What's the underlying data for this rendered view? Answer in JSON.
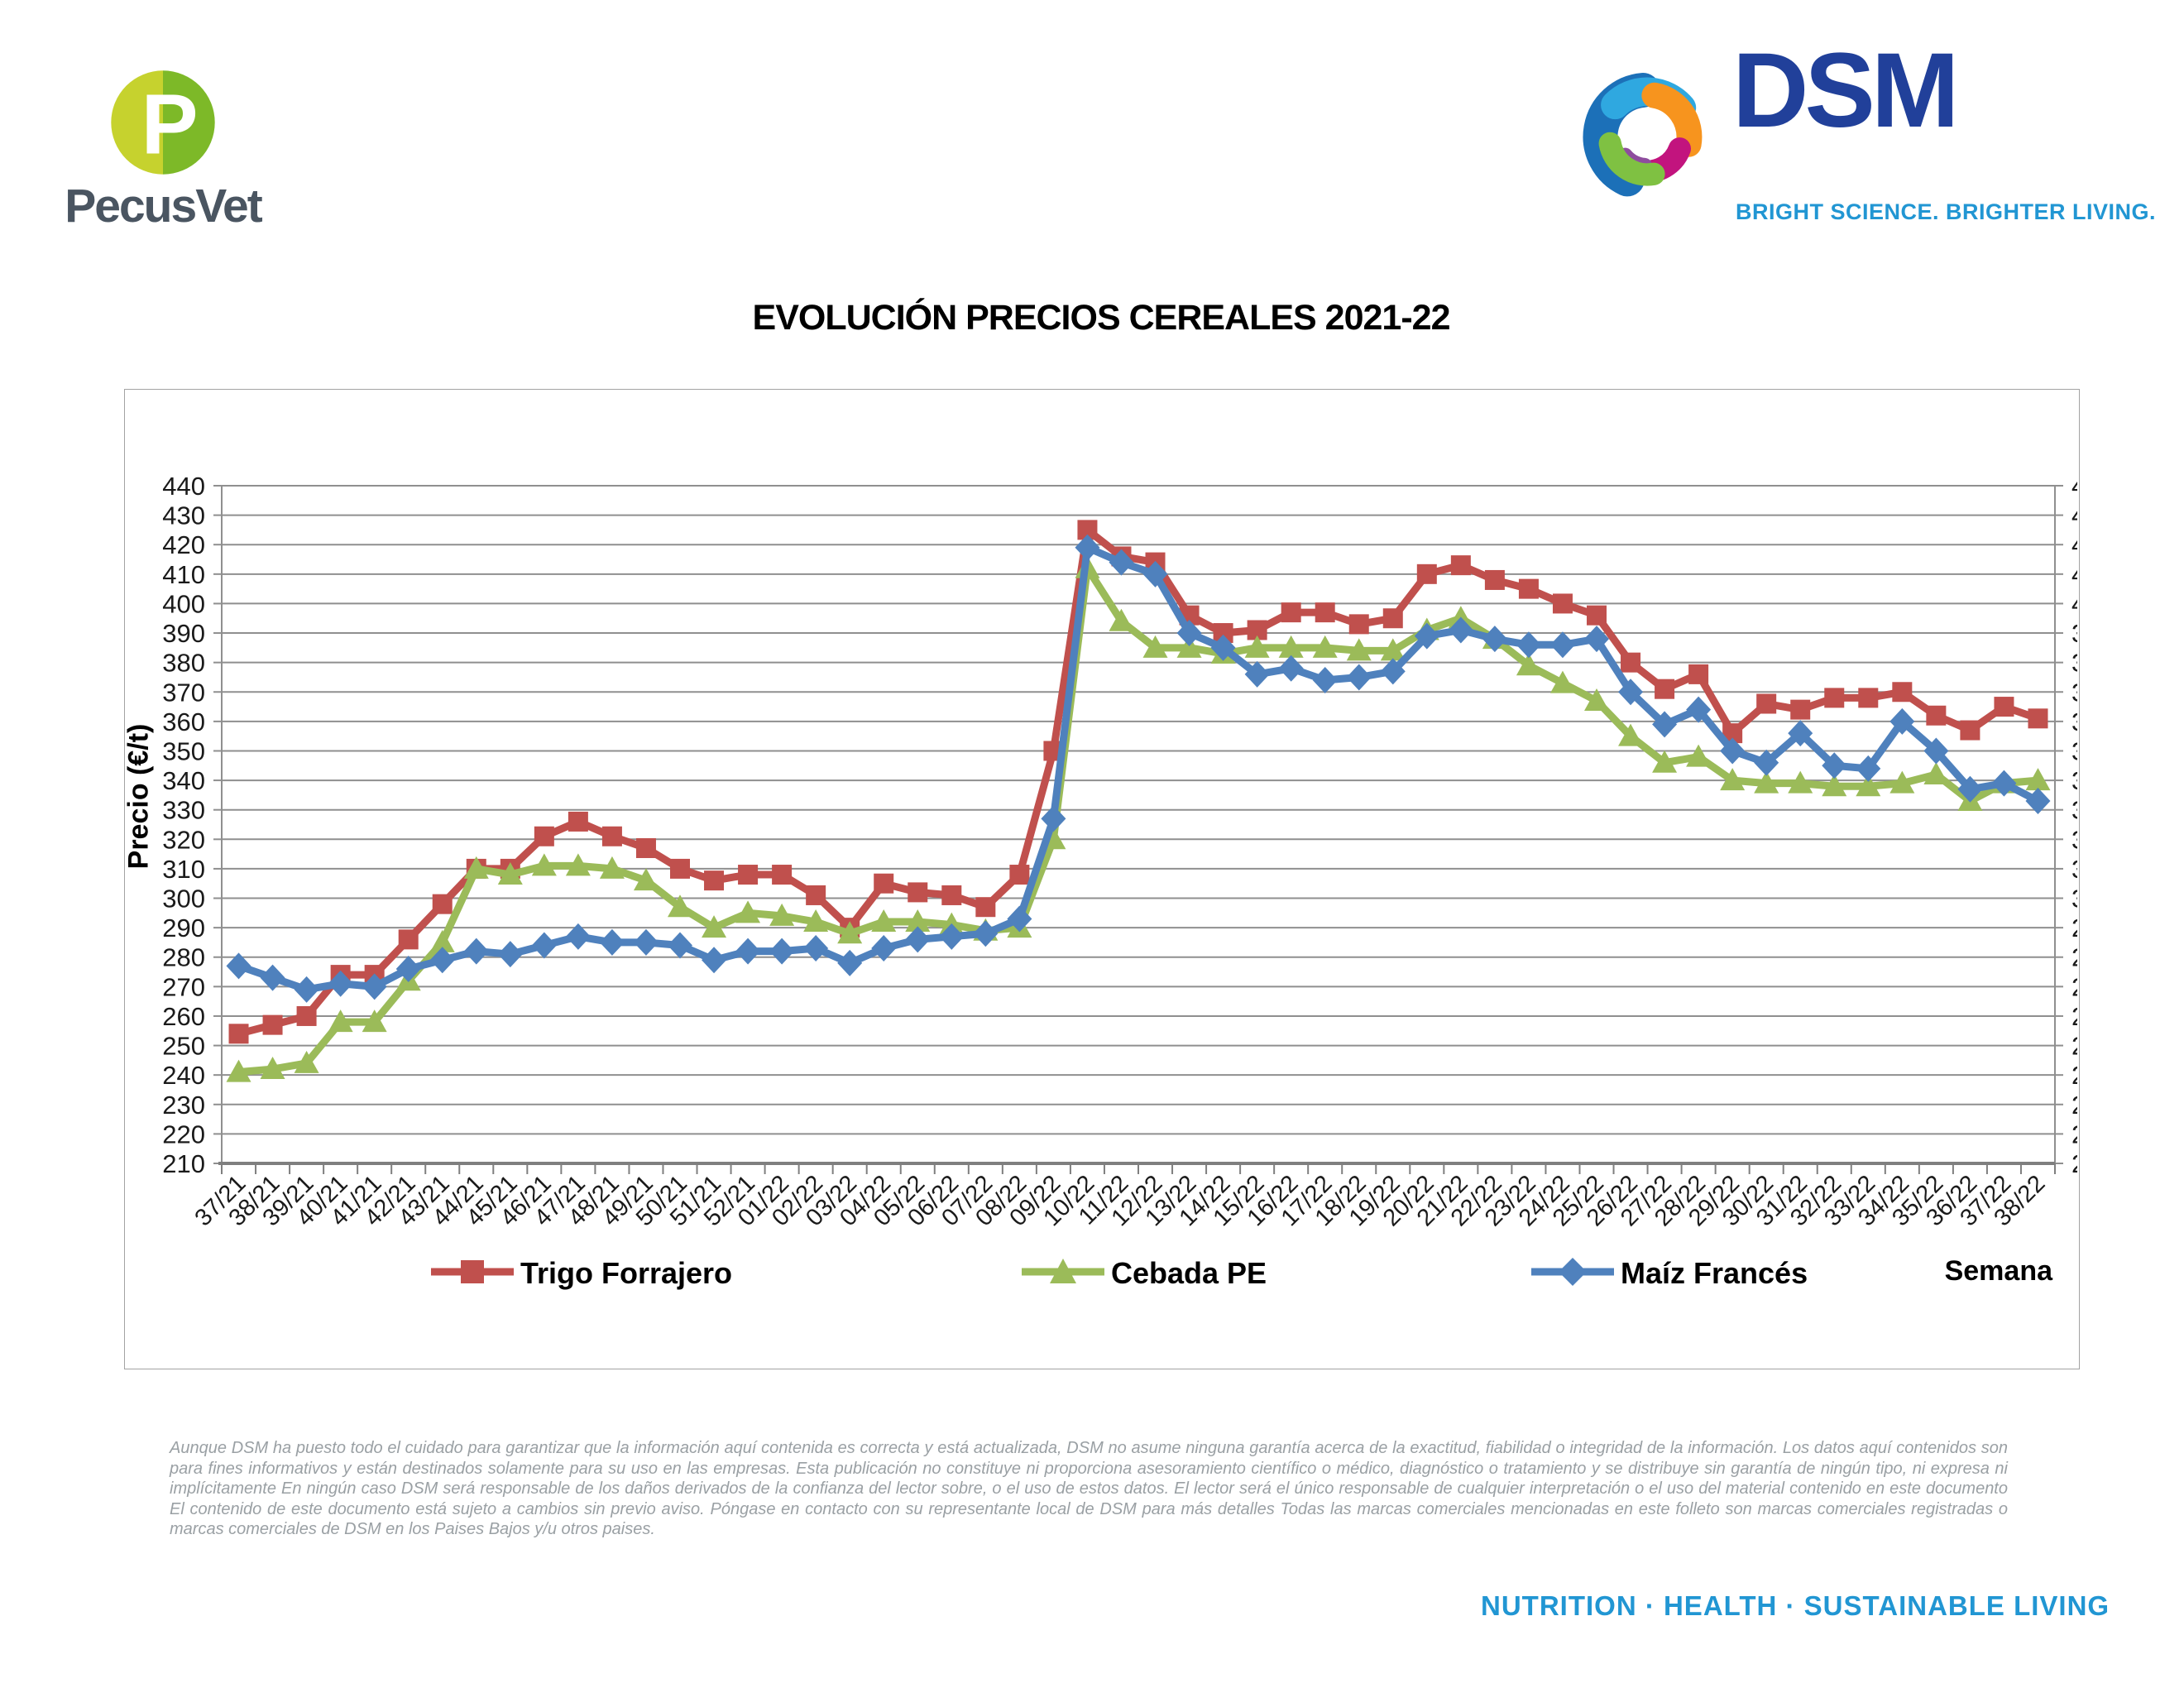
{
  "header": {
    "pecusvet": {
      "name": "PecusVet",
      "monogram": "P"
    },
    "dsm": {
      "name": "DSM",
      "tagline": "BRIGHT SCIENCE. BRIGHTER LIVING."
    }
  },
  "chart_data": {
    "type": "line",
    "title": "EVOLUCIÓN PRECIOS CEREALES 2021-22",
    "ylabel": "Precio (€/t)",
    "xlabel": "Semana",
    "ylim": [
      210,
      440
    ],
    "ytick_step": 10,
    "grid": true,
    "legend_position": "bottom",
    "secondary_y_axis": true,
    "categories": [
      "37/21",
      "38/21",
      "39/21",
      "40/21",
      "41/21",
      "42/21",
      "43/21",
      "44/21",
      "45/21",
      "46/21",
      "47/21",
      "48/21",
      "49/21",
      "50/21",
      "51/21",
      "52/21",
      "01/22",
      "02/22",
      "03/22",
      "04/22",
      "05/22",
      "06/22",
      "07/22",
      "08/22",
      "09/22",
      "10/22",
      "11/22",
      "12/22",
      "13/22",
      "14/22",
      "15/22",
      "16/22",
      "17/22",
      "18/22",
      "19/22",
      "20/22",
      "21/22",
      "22/22",
      "23/22",
      "24/22",
      "25/22",
      "26/22",
      "27/22",
      "28/22",
      "29/22",
      "30/22",
      "31/22",
      "32/22",
      "33/22",
      "34/22",
      "35/22",
      "36/22",
      "37/22",
      "38/22"
    ],
    "series": [
      {
        "name": "Trigo Forrajero",
        "color": "#C0504D",
        "marker": "square",
        "values": [
          254,
          257,
          260,
          274,
          274,
          286,
          298,
          310,
          310,
          321,
          326,
          321,
          317,
          310,
          306,
          308,
          308,
          301,
          290,
          305,
          302,
          301,
          297,
          308,
          350,
          425,
          416,
          414,
          396,
          390,
          391,
          397,
          397,
          393,
          395,
          410,
          413,
          408,
          405,
          400,
          396,
          380,
          371,
          376,
          356,
          366,
          364,
          368,
          368,
          370,
          362,
          357,
          365,
          361
        ]
      },
      {
        "name": "Cebada PE",
        "color": "#9BBB59",
        "marker": "triangle",
        "values": [
          241,
          242,
          244,
          258,
          258,
          272,
          285,
          310,
          308,
          311,
          311,
          310,
          306,
          297,
          290,
          295,
          294,
          292,
          288,
          292,
          292,
          291,
          289,
          290,
          320,
          412,
          394,
          385,
          385,
          383,
          385,
          385,
          385,
          384,
          384,
          391,
          395,
          388,
          379,
          373,
          367,
          355,
          346,
          348,
          340,
          339,
          339,
          338,
          338,
          339,
          342,
          333,
          339,
          340
        ]
      },
      {
        "name": "Maíz Francés",
        "color": "#4F81BD",
        "marker": "diamond",
        "values": [
          277,
          273,
          269,
          271,
          270,
          276,
          279,
          282,
          281,
          284,
          287,
          285,
          285,
          284,
          279,
          282,
          282,
          283,
          278,
          283,
          286,
          287,
          288,
          293,
          327,
          419,
          414,
          410,
          390,
          385,
          376,
          378,
          374,
          375,
          377,
          389,
          391,
          388,
          386,
          386,
          388,
          370,
          359,
          364,
          350,
          346,
          356,
          345,
          344,
          360,
          350,
          337,
          339,
          333
        ]
      }
    ]
  },
  "footer": {
    "disclaimer": "Aunque DSM ha puesto todo el cuidado para garantizar que la información aquí contenida es correcta y está actualizada, DSM no asume ninguna garantía acerca de la exactitud, fiabilidad o integridad de la información. Los datos aquí contenidos son para fines informativos y están destinados solamente para su uso en las empresas. Esta publicación no constituye ni proporciona asesoramiento científico o médico, diagnóstico o tratamiento y se distribuye sin garantía de ningún tipo, ni expresa ni implícitamente En ningún caso DSM será responsable de los daños derivados de la confianza del lector sobre, o el uso de estos datos. El lector será el único responsable de cualquier interpretación o el uso del material contenido en este documento El contenido de este documento está sujeto a cambios sin previo aviso. Póngase en contacto con su representante local de DSM para más detalles Todas las marcas comerciales mencionadas en este folleto son marcas comerciales registradas o marcas comerciales de DSM en los Paises Bajos y/u otros paises.",
    "tagline": "NUTRITION · HEALTH · SUSTAINABLE LIVING"
  },
  "colors": {
    "grid": "#8f8f8f",
    "axis": "#7f7f7f",
    "tick_text": "#1a1a1a",
    "title_text": "#000000",
    "pecusvet_text": "#4a5561",
    "pecusvet_left": "#c6d22e",
    "pecusvet_right": "#7db928",
    "dsm_blue": "#21409a",
    "dsm_light_blue": "#2196d3",
    "dsm_swirl_dark_blue": "#1c70b8",
    "dsm_swirl_light_blue": "#2fa8e0",
    "dsm_swirl_orange": "#f7941e",
    "dsm_swirl_magenta": "#c2147e",
    "dsm_swirl_purple": "#8e4d9e",
    "dsm_swirl_green": "#7fc142",
    "footer_text": "#9aa0a4"
  }
}
